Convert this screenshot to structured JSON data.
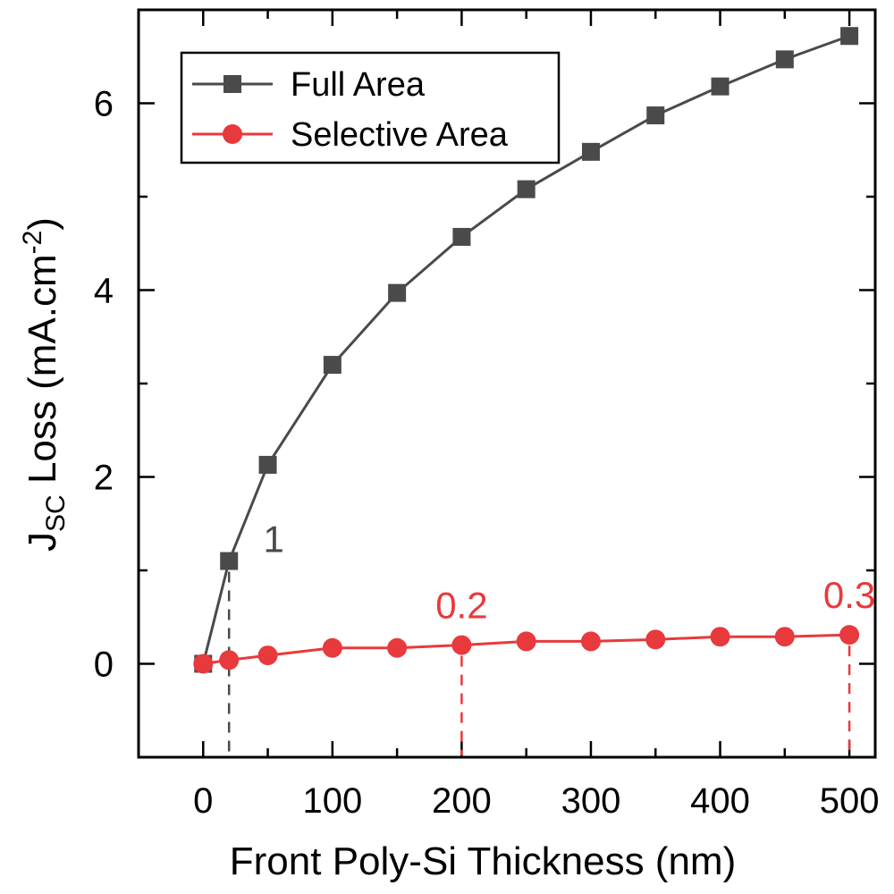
{
  "chart_data": {
    "type": "line",
    "title": "",
    "xlabel": "Front Poly-Si Thickness (nm)",
    "ylabel": {
      "main": "J",
      "subscript": "SC",
      "rest": " Loss (mA.cm",
      "superscript": "-2",
      "close": ")"
    },
    "xlim": [
      -50,
      520
    ],
    "ylim": [
      -1,
      7
    ],
    "xticks": [
      0,
      100,
      200,
      300,
      400,
      500
    ],
    "xtick_labels": [
      "0",
      "100",
      "200",
      "300",
      "400",
      "500"
    ],
    "yticks": [
      0,
      2,
      4,
      6
    ],
    "ytick_labels": [
      "0",
      "2",
      "4",
      "6"
    ],
    "grid": false,
    "legend_position": "top-left",
    "series": [
      {
        "name": "Full Area",
        "color": "#4a4a4a",
        "marker": "square",
        "x": [
          0,
          20,
          50,
          100,
          150,
          200,
          250,
          300,
          350,
          400,
          450,
          500
        ],
        "y": [
          0.0,
          1.1,
          2.13,
          3.2,
          3.97,
          4.57,
          5.08,
          5.48,
          5.87,
          6.18,
          6.47,
          6.72
        ]
      },
      {
        "name": "Selective Area",
        "color": "#e8393c",
        "marker": "circle",
        "x": [
          0,
          20,
          50,
          100,
          150,
          200,
          250,
          300,
          350,
          400,
          450,
          500
        ],
        "y": [
          0.0,
          0.04,
          0.09,
          0.17,
          0.17,
          0.2,
          0.24,
          0.24,
          0.26,
          0.29,
          0.29,
          0.31
        ]
      }
    ],
    "annotations": [
      {
        "text": "1",
        "x": 20,
        "y": 1.1,
        "color": "#4a4a4a"
      },
      {
        "text": "0.2",
        "x": 200,
        "y": 0.2,
        "color": "#e8393c"
      },
      {
        "text": "0.3",
        "x": 500,
        "y": 0.31,
        "color": "#e8393c"
      }
    ]
  }
}
